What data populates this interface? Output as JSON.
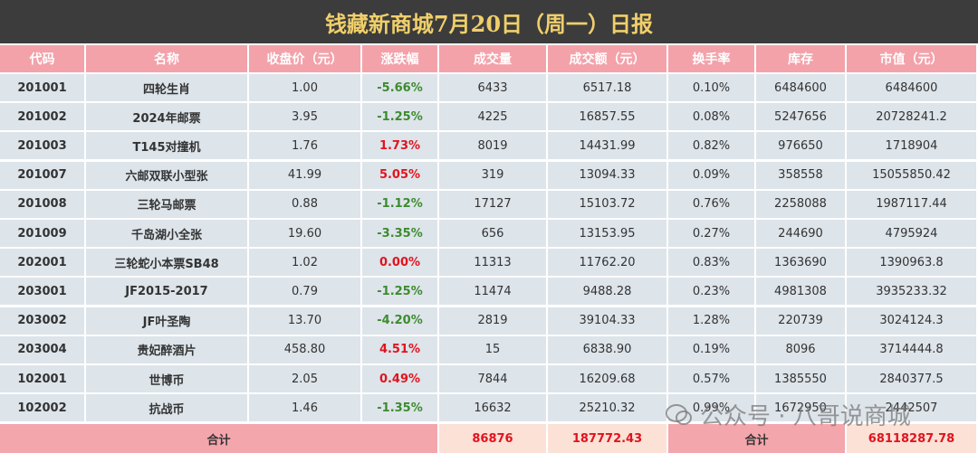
{
  "title": "钱藏新商城7月20日（周一）日报",
  "table": {
    "header": [
      "代码",
      "名称",
      "收盘价（元）",
      "涨跌幅",
      "成交量",
      "成交额（元）",
      "换手率",
      "库存",
      "市值（元）"
    ],
    "rows": [
      [
        "201001",
        "四轮生肖",
        "1.00",
        "-5.66%",
        "6433",
        "6517.18",
        "0.10%",
        "6484600",
        "6484600"
      ],
      [
        "201002",
        "2024年邮票",
        "3.95",
        "-1.25%",
        "4225",
        "16857.55",
        "0.08%",
        "5247656",
        "20728241.2"
      ],
      [
        "201003",
        "T145对撞机",
        "1.76",
        "1.73%",
        "8019",
        "14431.99",
        "0.82%",
        "976650",
        "1718904"
      ],
      [
        "201007",
        "六邮双联小型张",
        "41.99",
        "5.05%",
        "319",
        "13094.33",
        "0.09%",
        "358558",
        "15055850.42"
      ],
      [
        "201008",
        "三轮马邮票",
        "0.88",
        "-1.12%",
        "17127",
        "15103.72",
        "0.76%",
        "2258088",
        "1987117.44"
      ],
      [
        "201009",
        "千岛湖小全张",
        "19.60",
        "-3.35%",
        "656",
        "13153.95",
        "0.27%",
        "244690",
        "4795924"
      ],
      [
        "202001",
        "三轮蛇小本票SB48",
        "1.02",
        "0.00%",
        "11313",
        "11762.20",
        "0.83%",
        "1363690",
        "1390963.8"
      ],
      [
        "203001",
        "JF2015-2017",
        "0.79",
        "-1.25%",
        "11474",
        "9488.28",
        "0.23%",
        "4981308",
        "3935233.32"
      ],
      [
        "203002",
        "JF叶圣陶",
        "13.70",
        "-4.20%",
        "2819",
        "39104.33",
        "1.28%",
        "220739",
        "3024124.3"
      ],
      [
        "203004",
        "贵妃醉酒片",
        "458.80",
        "4.51%",
        "15",
        "6838.90",
        "0.19%",
        "8096",
        "3714444.8"
      ],
      [
        "102001",
        "世博币",
        "2.05",
        "0.49%",
        "7844",
        "16209.68",
        "0.57%",
        "1385550",
        "2840377.5"
      ],
      [
        "102002",
        "抗战币",
        "1.46",
        "-1.35%",
        "16632",
        "25210.32",
        "0.99%",
        "1672950",
        "2442507"
      ]
    ],
    "footer": {
      "label": "合计",
      "volume": "86876",
      "amount": "187772.43",
      "label2": "合计",
      "market_value": "68118287.78"
    }
  },
  "watermark": "公众号 · 八哥说商城"
}
